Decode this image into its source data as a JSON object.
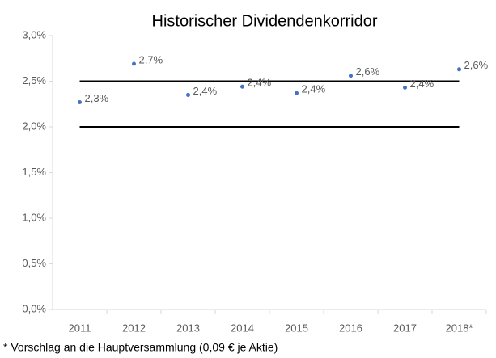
{
  "chart_data": {
    "type": "scatter",
    "title": "Historischer Dividendenkorridor",
    "categories": [
      "2011",
      "2012",
      "2013",
      "2014",
      "2015",
      "2016",
      "2017",
      "2018*"
    ],
    "values": [
      2.27,
      2.69,
      2.35,
      2.44,
      2.37,
      2.56,
      2.43,
      2.63
    ],
    "value_labels": [
      "2,3%",
      "2,7%",
      "2,4%",
      "2,4%",
      "2,4%",
      "2,6%",
      "2,4%",
      "2,6%"
    ],
    "color": "#4472c4",
    "hlines": [
      2,
      2.5
    ],
    "ylim": [
      0,
      3
    ],
    "yticks": [
      {
        "value": 0,
        "label": "0,0%"
      },
      {
        "value": 0.5,
        "label": "0,5%"
      },
      {
        "value": 1,
        "label": "1,0%"
      },
      {
        "value": 1.5,
        "label": "1,5%"
      },
      {
        "value": 2,
        "label": "2,0%"
      },
      {
        "value": 2.5,
        "label": "2,5%"
      },
      {
        "value": 3,
        "label": "3,0%"
      }
    ],
    "footnote": "* Vorschlag an die Hauptversammlung (0,09 € je Aktie)"
  }
}
